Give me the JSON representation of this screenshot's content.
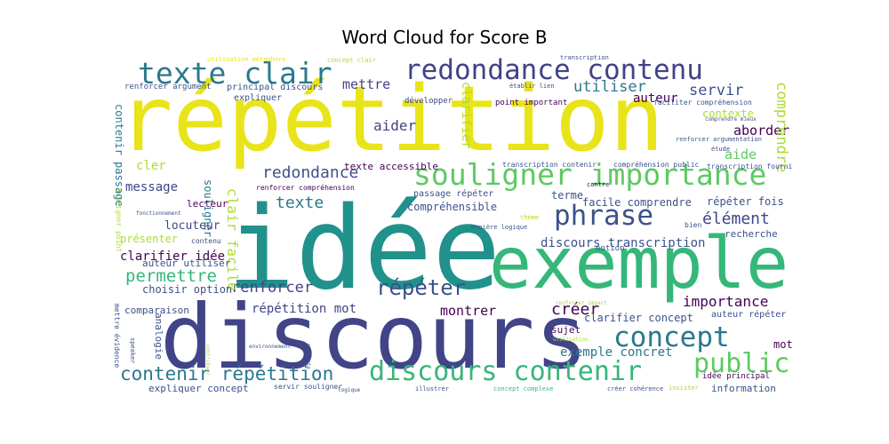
{
  "title": "Word Cloud for Score B",
  "colors": {
    "yellow": "#e8e419",
    "teal": "#21918c",
    "indigo": "#3b528b",
    "purple": "#440154",
    "green": "#5ec962",
    "light_green": "#addc30",
    "sea": "#2a788e",
    "mint": "#35b779",
    "violet": "#414487"
  },
  "words": [
    {
      "text": "répétition",
      "color": "yellow"
    },
    {
      "text": "idée",
      "color": "teal"
    },
    {
      "text": "discours",
      "color": "violet"
    },
    {
      "text": "exemple",
      "color": "mint"
    },
    {
      "text": "texte clair",
      "color": "sea"
    },
    {
      "text": "redondance contenu",
      "color": "violet"
    },
    {
      "text": "souligner importance",
      "color": "green"
    },
    {
      "text": "phrase",
      "color": "indigo"
    },
    {
      "text": "discours contenir",
      "color": "mint"
    },
    {
      "text": "concept",
      "color": "sea"
    },
    {
      "text": "public",
      "color": "green"
    },
    {
      "text": "contenir répétition",
      "color": "sea"
    },
    {
      "text": "redondance",
      "color": "indigo"
    },
    {
      "text": "répéter",
      "color": "indigo"
    },
    {
      "text": "renforcer",
      "color": "violet"
    },
    {
      "text": "permettre",
      "color": "mint"
    },
    {
      "text": "texte",
      "color": "sea"
    },
    {
      "text": "message",
      "color": "violet"
    },
    {
      "text": "utiliser",
      "color": "sea"
    },
    {
      "text": "servir",
      "color": "indigo"
    },
    {
      "text": "mettre",
      "color": "violet"
    },
    {
      "text": "aider",
      "color": "violet"
    },
    {
      "text": "auteur",
      "color": "purple"
    },
    {
      "text": "aborder",
      "color": "purple"
    },
    {
      "text": "comprendre",
      "color": "light_green"
    },
    {
      "text": "créer",
      "color": "purple"
    },
    {
      "text": "élément",
      "color": "violet"
    },
    {
      "text": "importance",
      "color": "purple"
    },
    {
      "text": "exemple concret",
      "color": "sea"
    },
    {
      "text": "montrer",
      "color": "purple"
    },
    {
      "text": "répétition mot",
      "color": "violet"
    },
    {
      "text": "clair facile",
      "color": "light_green"
    },
    {
      "text": "souligner",
      "color": "sea"
    },
    {
      "text": "aide",
      "color": "green"
    },
    {
      "text": "contexte",
      "color": "light_green"
    },
    {
      "text": "cler",
      "color": "light_green"
    },
    {
      "text": "clarifier",
      "color": "light_green"
    },
    {
      "text": "discours transcription",
      "color": "indigo"
    },
    {
      "text": "choisir option",
      "color": "indigo"
    },
    {
      "text": "clarifier idée",
      "color": "purple"
    },
    {
      "text": "locuteur",
      "color": "violet"
    },
    {
      "text": "présenter",
      "color": "light_green"
    },
    {
      "text": "compréhensible",
      "color": "indigo"
    },
    {
      "text": "facile comprendre",
      "color": "indigo"
    },
    {
      "text": "répéter fois",
      "color": "indigo"
    },
    {
      "text": "recherche",
      "color": "indigo"
    },
    {
      "text": "texte accessible",
      "color": "purple"
    },
    {
      "text": "passage répéter",
      "color": "indigo"
    },
    {
      "text": "terme",
      "color": "indigo"
    },
    {
      "text": "clarifier concept",
      "color": "indigo"
    },
    {
      "text": "auteur répéter",
      "color": "indigo"
    },
    {
      "text": "mot",
      "color": "purple"
    },
    {
      "text": "sujet",
      "color": "purple"
    },
    {
      "text": "information",
      "color": "indigo"
    },
    {
      "text": "idée principal",
      "color": "purple"
    },
    {
      "text": "expliquer concept",
      "color": "indigo"
    },
    {
      "text": "comparaison",
      "color": "indigo"
    },
    {
      "text": "analogie",
      "color": "indigo"
    },
    {
      "text": "contenir passage",
      "color": "sea"
    },
    {
      "text": "principal discours",
      "color": "indigo"
    },
    {
      "text": "expliquer",
      "color": "indigo"
    },
    {
      "text": "renforcer argument",
      "color": "indigo"
    },
    {
      "text": "auteur utiliser",
      "color": "indigo"
    },
    {
      "text": "lecteur",
      "color": "purple"
    },
    {
      "text": "point important",
      "color": "purple"
    },
    {
      "text": "développer",
      "color": "violet"
    },
    {
      "text": "transcription contenir",
      "color": "indigo"
    },
    {
      "text": "compréhension public",
      "color": "indigo"
    },
    {
      "text": "transcription fourni",
      "color": "indigo"
    },
    {
      "text": "renforcer compréhension",
      "color": "purple"
    },
    {
      "text": "faciliter compréhension",
      "color": "indigo"
    },
    {
      "text": "renforcer argumentation",
      "color": "indigo"
    },
    {
      "text": "notion",
      "color": "indigo"
    },
    {
      "text": "servir souligner",
      "color": "indigo"
    },
    {
      "text": "concept complexe",
      "color": "mint"
    },
    {
      "text": "créer cohérence",
      "color": "indigo"
    },
    {
      "text": "insister",
      "color": "light_green"
    },
    {
      "text": "illustrer",
      "color": "indigo"
    },
    {
      "text": "contenu",
      "color": "violet"
    },
    {
      "text": "bien",
      "color": "indigo"
    },
    {
      "text": "étude",
      "color": "indigo"
    },
    {
      "text": "concept clair",
      "color": "light_green"
    },
    {
      "text": "transcription",
      "color": "indigo"
    },
    {
      "text": "établir lien",
      "color": "indigo"
    },
    {
      "text": "souligner point",
      "color": "light_green"
    },
    {
      "text": "mettre évidence",
      "color": "indigo"
    },
    {
      "text": "speaker",
      "color": "indigo"
    },
    {
      "text": "manière logique",
      "color": "indigo"
    },
    {
      "text": "renforcer impact",
      "color": "light_green"
    },
    {
      "text": "utilisation métaphore",
      "color": "yellow"
    },
    {
      "text": "contre",
      "color": "purple"
    },
    {
      "text": "thème",
      "color": "light_green"
    },
    {
      "text": "fonctionnement",
      "color": "indigo"
    },
    {
      "text": "environnement",
      "color": "indigo"
    },
    {
      "text": "comprendre mieux",
      "color": "indigo"
    },
    {
      "text": "utilisation",
      "color": "light_green"
    },
    {
      "text": "contribuer",
      "color": "light_green"
    },
    {
      "text": "présente",
      "color": "indigo"
    },
    {
      "text": "logique",
      "color": "indigo"
    }
  ]
}
